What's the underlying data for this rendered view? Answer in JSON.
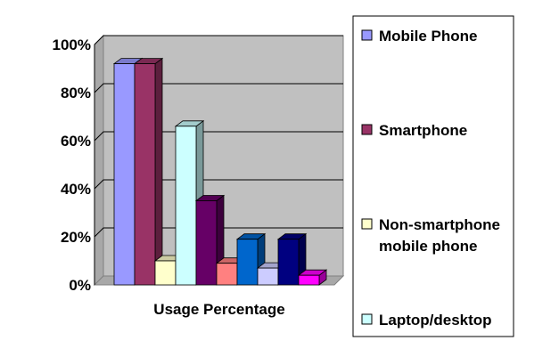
{
  "chart_data": {
    "type": "bar",
    "style": "3d-clustered-column",
    "xlabel": "Usage Percentage",
    "ylim": [
      0,
      1
    ],
    "yticks": [
      "0%",
      "20%",
      "40%",
      "60%",
      "80%",
      "100%"
    ],
    "grid": true,
    "legend_position": "right",
    "series": [
      {
        "name": "Mobile Phone",
        "value": 0.92,
        "color": "#9999ff"
      },
      {
        "name": "Smartphone",
        "value": 0.92,
        "color": "#993366"
      },
      {
        "name": "Non-smartphone mobile phone",
        "value": 0.1,
        "color": "#ffffcc"
      },
      {
        "name": "Laptop/desktop",
        "value": 0.66,
        "color": "#ccffff"
      },
      {
        "name": "",
        "value": 0.35,
        "color": "#660066"
      },
      {
        "name": "",
        "value": 0.09,
        "color": "#ff8080"
      },
      {
        "name": "",
        "value": 0.19,
        "color": "#0066cc"
      },
      {
        "name": "",
        "value": 0.07,
        "color": "#ccccff"
      },
      {
        "name": "",
        "value": 0.19,
        "color": "#000080"
      },
      {
        "name": "",
        "value": 0.04,
        "color": "#ff00ff"
      }
    ],
    "legend_entries": [
      {
        "lines": [
          "Mobile Phone"
        ],
        "color": "#9999ff"
      },
      {
        "lines": [
          "Smartphone"
        ],
        "color": "#993366"
      },
      {
        "lines": [
          "Non-smartphone",
          "mobile phone"
        ],
        "color": "#ffffcc"
      },
      {
        "lines": [
          "Laptop/desktop"
        ],
        "color": "#ccffff"
      }
    ],
    "plot_background": "#c0c0c0"
  }
}
